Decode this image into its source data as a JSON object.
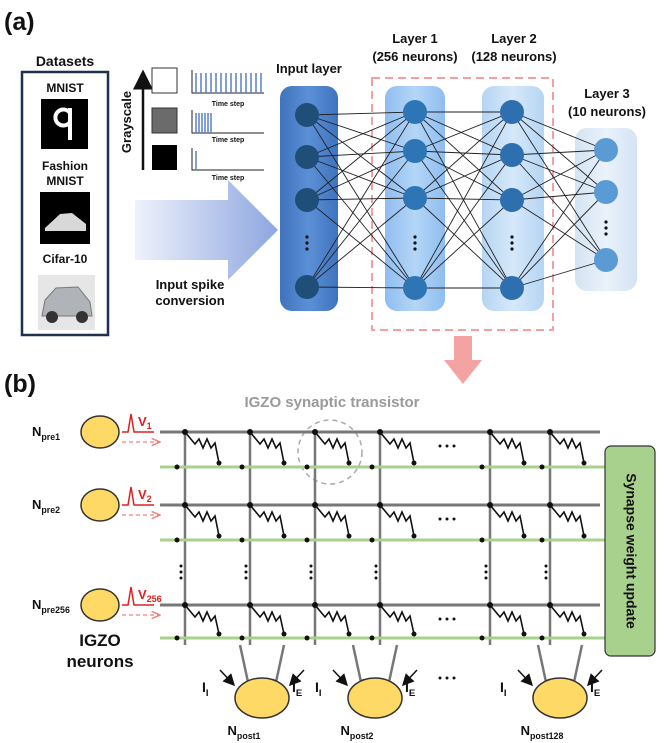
{
  "panel_a": {
    "label": "(a)",
    "datasets": {
      "title": "Datasets",
      "items": [
        [
          "MNIST"
        ],
        [
          "Fashion",
          "MNIST"
        ],
        [
          "Cifar-10"
        ]
      ]
    },
    "grayscale": "Grayscale",
    "time_axis": [
      "Time step",
      "Time step",
      "Time step"
    ],
    "conversion": [
      "Input spike",
      "conversion"
    ],
    "layers": [
      {
        "title": [
          "Input layer"
        ]
      },
      {
        "title": [
          "Layer 1",
          "(256 neurons)"
        ]
      },
      {
        "title": [
          "Layer 2",
          "(128 neurons)"
        ]
      },
      {
        "title": [
          "Layer 3",
          "(10 neurons)"
        ]
      }
    ]
  },
  "panel_b": {
    "label": "(b)",
    "callout": "IGZO synaptic transistor",
    "pre_neurons": [
      {
        "main": "N",
        "sub": "pre1",
        "v": "V",
        "v_sub": "1"
      },
      {
        "main": "N",
        "sub": "pre2",
        "v": "V",
        "v_sub": "2"
      },
      {
        "main": "N",
        "sub": "pre256",
        "v": "V",
        "v_sub": "256"
      }
    ],
    "neuron_caption": [
      "IGZO",
      "neurons"
    ],
    "update_box": "Synapse weight update",
    "currents": {
      "inhibit": {
        "main": "I",
        "sub": "I"
      },
      "excite": {
        "main": "I",
        "sub": "E"
      }
    },
    "post_neurons": [
      {
        "main": "N",
        "sub": "post1"
      },
      {
        "main": "N",
        "sub": "post2"
      },
      {
        "main": "N",
        "sub": "post128"
      }
    ]
  }
}
